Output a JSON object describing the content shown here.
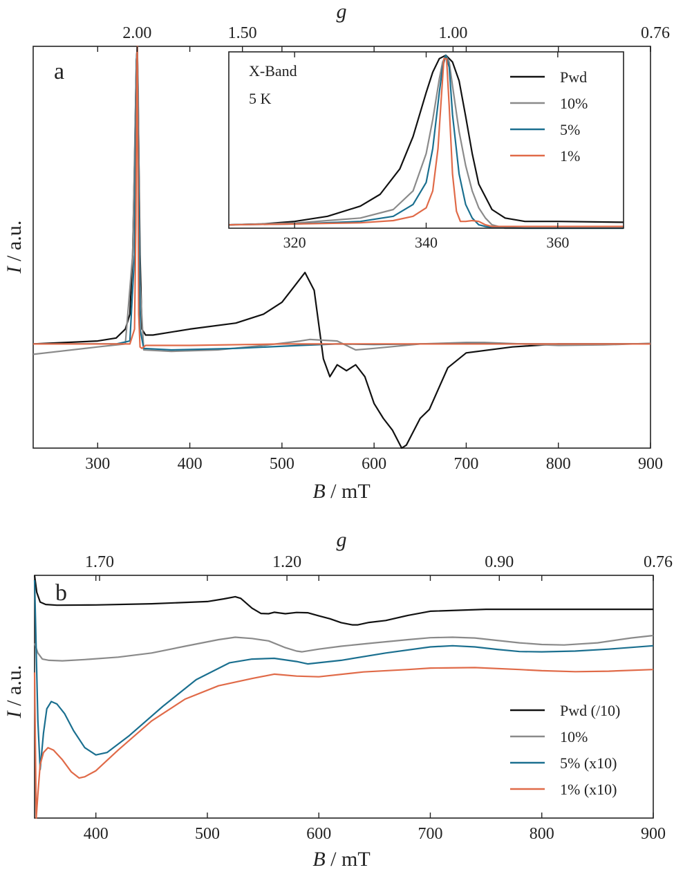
{
  "colors": {
    "pwd": "#111111",
    "p10": "#8a8a8a",
    "p5": "#1a6f8f",
    "p1": "#e06a48"
  },
  "chart_data": [
    {
      "id": "panel_a",
      "type": "line",
      "panel_label": "a",
      "xlabel_italic": "B",
      "xlabel_rest": " / mT",
      "ylabel_italic": "I",
      "ylabel_rest": " / a.u.",
      "top_axis_label": "g",
      "xlim": [
        230,
        900
      ],
      "ylim": [
        -0.35,
        1.0
      ],
      "x_ticks": [
        300,
        400,
        500,
        600,
        700,
        800,
        900
      ],
      "x_tick_labels": [
        "300",
        "400",
        "500",
        "600",
        "700",
        "800",
        "900"
      ],
      "top_ticks": [
        342.8,
        457.1,
        685.7,
        900
      ],
      "top_tick_labels": [
        "2.00",
        "1.50",
        "1.00",
        "0.76"
      ],
      "series": [
        {
          "key": "pwd",
          "x": [
            230,
            300,
            320,
            330,
            335,
            338,
            340,
            342,
            343,
            344,
            346,
            348,
            352,
            360,
            400,
            450,
            480,
            500,
            515,
            525,
            535,
            545,
            552,
            560,
            570,
            580,
            590,
            600,
            610,
            620,
            630,
            635,
            640,
            650,
            660,
            670,
            680,
            700,
            750,
            800,
            900
          ],
          "y": [
            0.0,
            0.01,
            0.02,
            0.05,
            0.1,
            0.3,
            0.6,
            0.95,
            1.0,
            0.8,
            0.3,
            0.05,
            0.03,
            0.03,
            0.05,
            0.07,
            0.1,
            0.14,
            0.2,
            0.24,
            0.18,
            -0.05,
            -0.11,
            -0.07,
            -0.09,
            -0.07,
            -0.11,
            -0.2,
            -0.25,
            -0.29,
            -0.35,
            -0.34,
            -0.31,
            -0.25,
            -0.22,
            -0.15,
            -0.08,
            -0.03,
            -0.01,
            0.0,
            0.0
          ]
        },
        {
          "key": "p10",
          "x": [
            230,
            300,
            330,
            338,
            342,
            343,
            344,
            346,
            350,
            380,
            430,
            480,
            520,
            530,
            560,
            580,
            600,
            650,
            700,
            720,
            760,
            800,
            850,
            900
          ],
          "y": [
            -0.035,
            -0.01,
            0.0,
            0.3,
            0.95,
            1.0,
            0.85,
            0.2,
            -0.02,
            -0.025,
            -0.02,
            -0.005,
            0.01,
            0.015,
            0.01,
            -0.02,
            -0.015,
            0.0,
            0.005,
            0.005,
            0.0,
            -0.005,
            -0.003,
            0.002
          ]
        },
        {
          "key": "p5",
          "x": [
            230,
            320,
            335,
            340,
            342,
            343,
            344,
            346,
            350,
            380,
            450,
            520,
            560,
            600,
            650,
            700,
            800,
            900
          ],
          "y": [
            0.0,
            0.0,
            0.01,
            0.3,
            0.95,
            1.0,
            0.7,
            0.05,
            -0.015,
            -0.02,
            -0.015,
            -0.005,
            0.0,
            -0.002,
            0.0,
            0.001,
            0.0,
            0.0
          ]
        },
        {
          "key": "p1",
          "x": [
            230,
            335,
            340,
            341.5,
            342.5,
            343,
            343.5,
            344.5,
            346,
            348,
            352,
            400,
            500,
            600,
            700,
            800,
            900
          ],
          "y": [
            0.0,
            0.0,
            0.05,
            0.4,
            0.95,
            1.0,
            0.7,
            0.1,
            -0.01,
            -0.015,
            -0.005,
            -0.005,
            0.0,
            0.0,
            0.0,
            0.0,
            0.0
          ]
        }
      ]
    },
    {
      "id": "inset",
      "type": "line",
      "annotation_line1": "X-Band",
      "annotation_line2": "5 K",
      "xlim": [
        310,
        370
      ],
      "ylim": [
        -0.02,
        1.02
      ],
      "x_ticks": [
        320,
        340,
        360
      ],
      "x_tick_labels": [
        "320",
        "340",
        "360"
      ],
      "legend": [
        "Pwd",
        "10%",
        "5%",
        "1%"
      ],
      "series": [
        {
          "key": "pwd",
          "x": [
            310,
            315,
            320,
            325,
            330,
            333,
            336,
            338,
            340,
            341,
            342,
            343,
            344,
            345,
            346,
            347,
            348,
            350,
            352,
            355,
            360,
            370
          ],
          "y": [
            0.0,
            0.005,
            0.02,
            0.05,
            0.11,
            0.18,
            0.33,
            0.52,
            0.78,
            0.9,
            0.98,
            1.0,
            0.96,
            0.85,
            0.64,
            0.42,
            0.24,
            0.09,
            0.04,
            0.02,
            0.02,
            0.015
          ]
        },
        {
          "key": "p10",
          "x": [
            310,
            320,
            330,
            335,
            338,
            340,
            341,
            342,
            342.5,
            343,
            343.5,
            344,
            345,
            346,
            347,
            348,
            349,
            350,
            352,
            355,
            360,
            370
          ],
          "y": [
            0.0,
            0.01,
            0.04,
            0.09,
            0.2,
            0.42,
            0.62,
            0.86,
            0.96,
            1.0,
            0.96,
            0.82,
            0.55,
            0.35,
            0.2,
            0.1,
            0.04,
            0.0,
            -0.02,
            -0.02,
            -0.02,
            -0.02
          ]
        },
        {
          "key": "p5",
          "x": [
            310,
            320,
            330,
            335,
            338,
            340,
            341,
            342,
            342.5,
            343,
            343.5,
            344,
            345,
            346,
            347,
            348,
            349,
            350,
            355,
            370
          ],
          "y": [
            0.0,
            0.005,
            0.02,
            0.05,
            0.12,
            0.25,
            0.45,
            0.78,
            0.93,
            1.0,
            0.93,
            0.65,
            0.3,
            0.12,
            0.04,
            0.0,
            -0.01,
            -0.015,
            -0.02,
            -0.02
          ]
        },
        {
          "key": "p1",
          "x": [
            310,
            320,
            330,
            335,
            338,
            340,
            341,
            341.8,
            342.3,
            342.7,
            343.1,
            343.5,
            344,
            344.6,
            345.2,
            346,
            347,
            348,
            349,
            350,
            370
          ],
          "y": [
            0.0,
            0.005,
            0.012,
            0.025,
            0.05,
            0.1,
            0.2,
            0.45,
            0.75,
            0.98,
            0.98,
            0.7,
            0.3,
            0.08,
            0.02,
            0.02,
            0.025,
            0.02,
            0.0,
            -0.01,
            -0.01
          ]
        }
      ]
    },
    {
      "id": "panel_b",
      "type": "line",
      "panel_label": "b",
      "xlabel_italic": "B",
      "xlabel_rest": " / mT",
      "ylabel_italic": "I",
      "ylabel_rest": " / a.u.",
      "top_axis_label": "g",
      "xlim": [
        345,
        900
      ],
      "ylim": [
        0,
        100
      ],
      "x_ticks": [
        400,
        500,
        600,
        700,
        800,
        900
      ],
      "x_tick_labels": [
        "400",
        "500",
        "600",
        "700",
        "800",
        "900"
      ],
      "top_ticks": [
        403.3,
        571.4,
        761.9,
        900
      ],
      "top_tick_labels": [
        "1.70",
        "1.20",
        "0.90",
        "0.76"
      ],
      "legend": [
        "Pwd (/10)",
        "10%",
        "5% (x10)",
        "1% (x10)"
      ],
      "series": [
        {
          "key": "pwd",
          "x": [
            345,
            347,
            350,
            355,
            365,
            400,
            450,
            500,
            515,
            525,
            530,
            540,
            548,
            555,
            560,
            570,
            580,
            590,
            600,
            610,
            620,
            630,
            635,
            645,
            660,
            680,
            700,
            750,
            800,
            850,
            900
          ],
          "y": [
            100,
            93,
            89,
            88,
            87.7,
            87.8,
            88.3,
            89.2,
            90.3,
            91.2,
            90.5,
            86.5,
            84.3,
            84.2,
            84.8,
            84.2,
            84.7,
            84.6,
            83.3,
            82.1,
            80.5,
            79.6,
            79.6,
            80.6,
            81.4,
            83.5,
            85.2,
            86,
            86,
            86,
            86
          ]
        },
        {
          "key": "p10",
          "x": [
            345,
            348,
            352,
            358,
            370,
            390,
            420,
            450,
            480,
            510,
            525,
            540,
            555,
            570,
            580,
            585,
            600,
            620,
            650,
            680,
            700,
            720,
            740,
            760,
            780,
            800,
            820,
            850,
            880,
            900
          ],
          "y": [
            72,
            68,
            65.5,
            65,
            64.8,
            65.3,
            66.3,
            68,
            70.8,
            73.5,
            74.5,
            74,
            73,
            70.2,
            68.8,
            68.5,
            69.6,
            70.8,
            72.2,
            73.5,
            74.3,
            74.5,
            74.2,
            73.2,
            72.2,
            71.5,
            71.3,
            72.2,
            74.2,
            75.2
          ]
        },
        {
          "key": "p5",
          "x": [
            345,
            348,
            350,
            353,
            356,
            360,
            365,
            372,
            380,
            390,
            400,
            410,
            430,
            460,
            490,
            520,
            540,
            560,
            580,
            590,
            600,
            620,
            660,
            700,
            720,
            740,
            760,
            780,
            800,
            830,
            860,
            900
          ],
          "y": [
            98,
            40,
            20,
            35,
            45,
            48,
            47,
            43,
            36,
            29,
            26,
            27,
            34,
            46,
            57,
            64,
            65.5,
            65.8,
            64.5,
            63.5,
            64,
            65,
            68,
            70.5,
            71,
            70.5,
            69.5,
            68.6,
            68.5,
            68.8,
            69.6,
            71
          ]
        },
        {
          "key": "p1",
          "x": [
            345,
            346.5,
            348,
            350,
            353,
            357,
            362,
            370,
            378,
            385,
            390,
            400,
            420,
            450,
            480,
            510,
            540,
            560,
            580,
            600,
            640,
            680,
            700,
            740,
            780,
            800,
            830,
            860,
            900
          ],
          "y": [
            60,
            0,
            10,
            22,
            27,
            29,
            28,
            24,
            19,
            16.5,
            17,
            19.5,
            28,
            40,
            49,
            54.5,
            57.5,
            59.3,
            58.5,
            58.2,
            60.2,
            61.2,
            61.8,
            62,
            61.2,
            60.7,
            60.3,
            60.5,
            61.2
          ]
        }
      ]
    }
  ]
}
